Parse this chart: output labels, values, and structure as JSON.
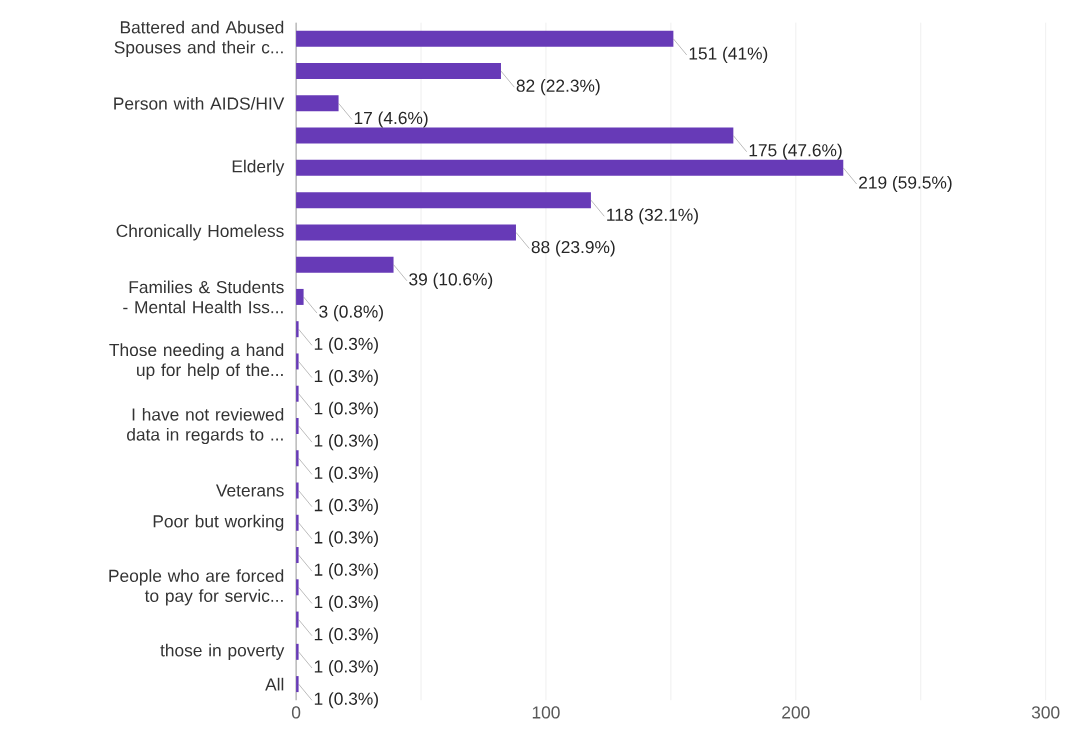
{
  "chart_data": {
    "type": "bar",
    "orientation": "horizontal",
    "categories": [
      "Battered and Abused Spouses and their c...",
      null,
      "Person with AIDS/HIV",
      null,
      "Elderly",
      null,
      "Chronically Homeless",
      null,
      "Families & Students - Mental Health Iss...",
      null,
      "Those needing a hand up for help of the...",
      null,
      "I have not reviewed data in regards to ...",
      null,
      "Veterans",
      "Poor but working",
      null,
      "People who are forced to pay for servic...",
      null,
      "those in poverty",
      "All"
    ],
    "values": [
      151,
      82,
      17,
      175,
      219,
      118,
      88,
      39,
      3,
      1,
      1,
      1,
      1,
      1,
      1,
      1,
      1,
      1,
      1,
      1,
      1
    ],
    "value_labels": [
      "151 (41%)",
      "82 (22.3%)",
      "17 (4.6%)",
      "175 (47.6%)",
      "219 (59.5%)",
      "118 (32.1%)",
      "88 (23.9%)",
      "39 (10.6%)",
      "3 (0.8%)",
      "1 (0.3%)",
      "1 (0.3%)",
      "1 (0.3%)",
      "1 (0.3%)",
      "1 (0.3%)",
      "1 (0.3%)",
      "1 (0.3%)",
      "1 (0.3%)",
      "1 (0.3%)",
      "1 (0.3%)",
      "1 (0.3%)",
      "1 (0.3%)"
    ],
    "color": "#673ab7",
    "xlim": [
      0,
      300
    ],
    "xticks": [
      0,
      {
        "value": 50,
        "label": null
      },
      100,
      {
        "value": 150,
        "label": null
      },
      200,
      {
        "value": 250,
        "label": null
      },
      300
    ],
    "grid": "x"
  }
}
